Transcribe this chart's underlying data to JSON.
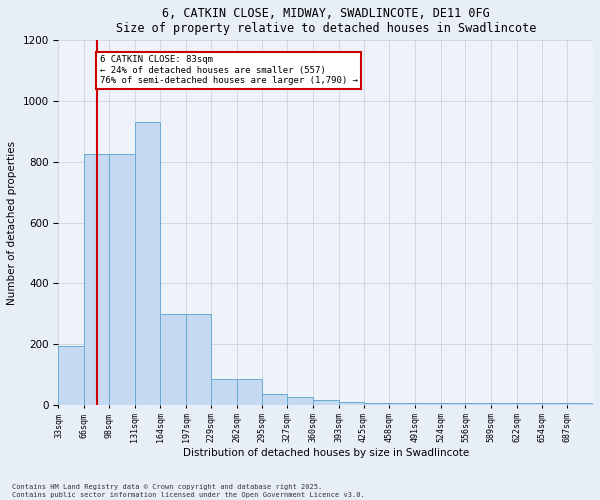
{
  "title1": "6, CATKIN CLOSE, MIDWAY, SWADLINCOTE, DE11 0FG",
  "title2": "Size of property relative to detached houses in Swadlincote",
  "xlabel": "Distribution of detached houses by size in Swadlincote",
  "ylabel": "Number of detached properties",
  "bin_edges": [
    33,
    66,
    98,
    131,
    164,
    197,
    229,
    262,
    295,
    327,
    360,
    393,
    425,
    458,
    491,
    524,
    556,
    589,
    622,
    654,
    687,
    720
  ],
  "bar_heights": [
    195,
    825,
    825,
    930,
    300,
    300,
    85,
    85,
    35,
    25,
    15,
    10,
    5,
    5,
    5,
    5,
    5,
    5,
    5,
    5,
    5
  ],
  "bar_color": "#c5d9f0",
  "bar_edge_color": "#6aaad4",
  "red_line_x": 83,
  "annotation_text": "6 CATKIN CLOSE: 83sqm\n← 24% of detached houses are smaller (557)\n76% of semi-detached houses are larger (1,790) →",
  "annotation_box_color": "#ffffff",
  "annotation_box_edge_color": "#cc0000",
  "annotation_text_color": "#000000",
  "red_line_color": "#cc0000",
  "ylim": [
    0,
    1200
  ],
  "yticks": [
    0,
    200,
    400,
    600,
    800,
    1000,
    1200
  ],
  "tick_labels": [
    "33sqm",
    "66sqm",
    "98sqm",
    "131sqm",
    "164sqm",
    "197sqm",
    "229sqm",
    "262sqm",
    "295sqm",
    "327sqm",
    "360sqm",
    "393sqm",
    "425sqm",
    "458sqm",
    "491sqm",
    "524sqm",
    "556sqm",
    "589sqm",
    "622sqm",
    "654sqm",
    "687sqm"
  ],
  "footer_text": "Contains HM Land Registry data © Crown copyright and database right 2025.\nContains public sector information licensed under the Open Government Licence v3.0.",
  "background_color": "#e8eef7",
  "plot_background_color": "#eef2f9",
  "grid_color": "#c8cdd8"
}
